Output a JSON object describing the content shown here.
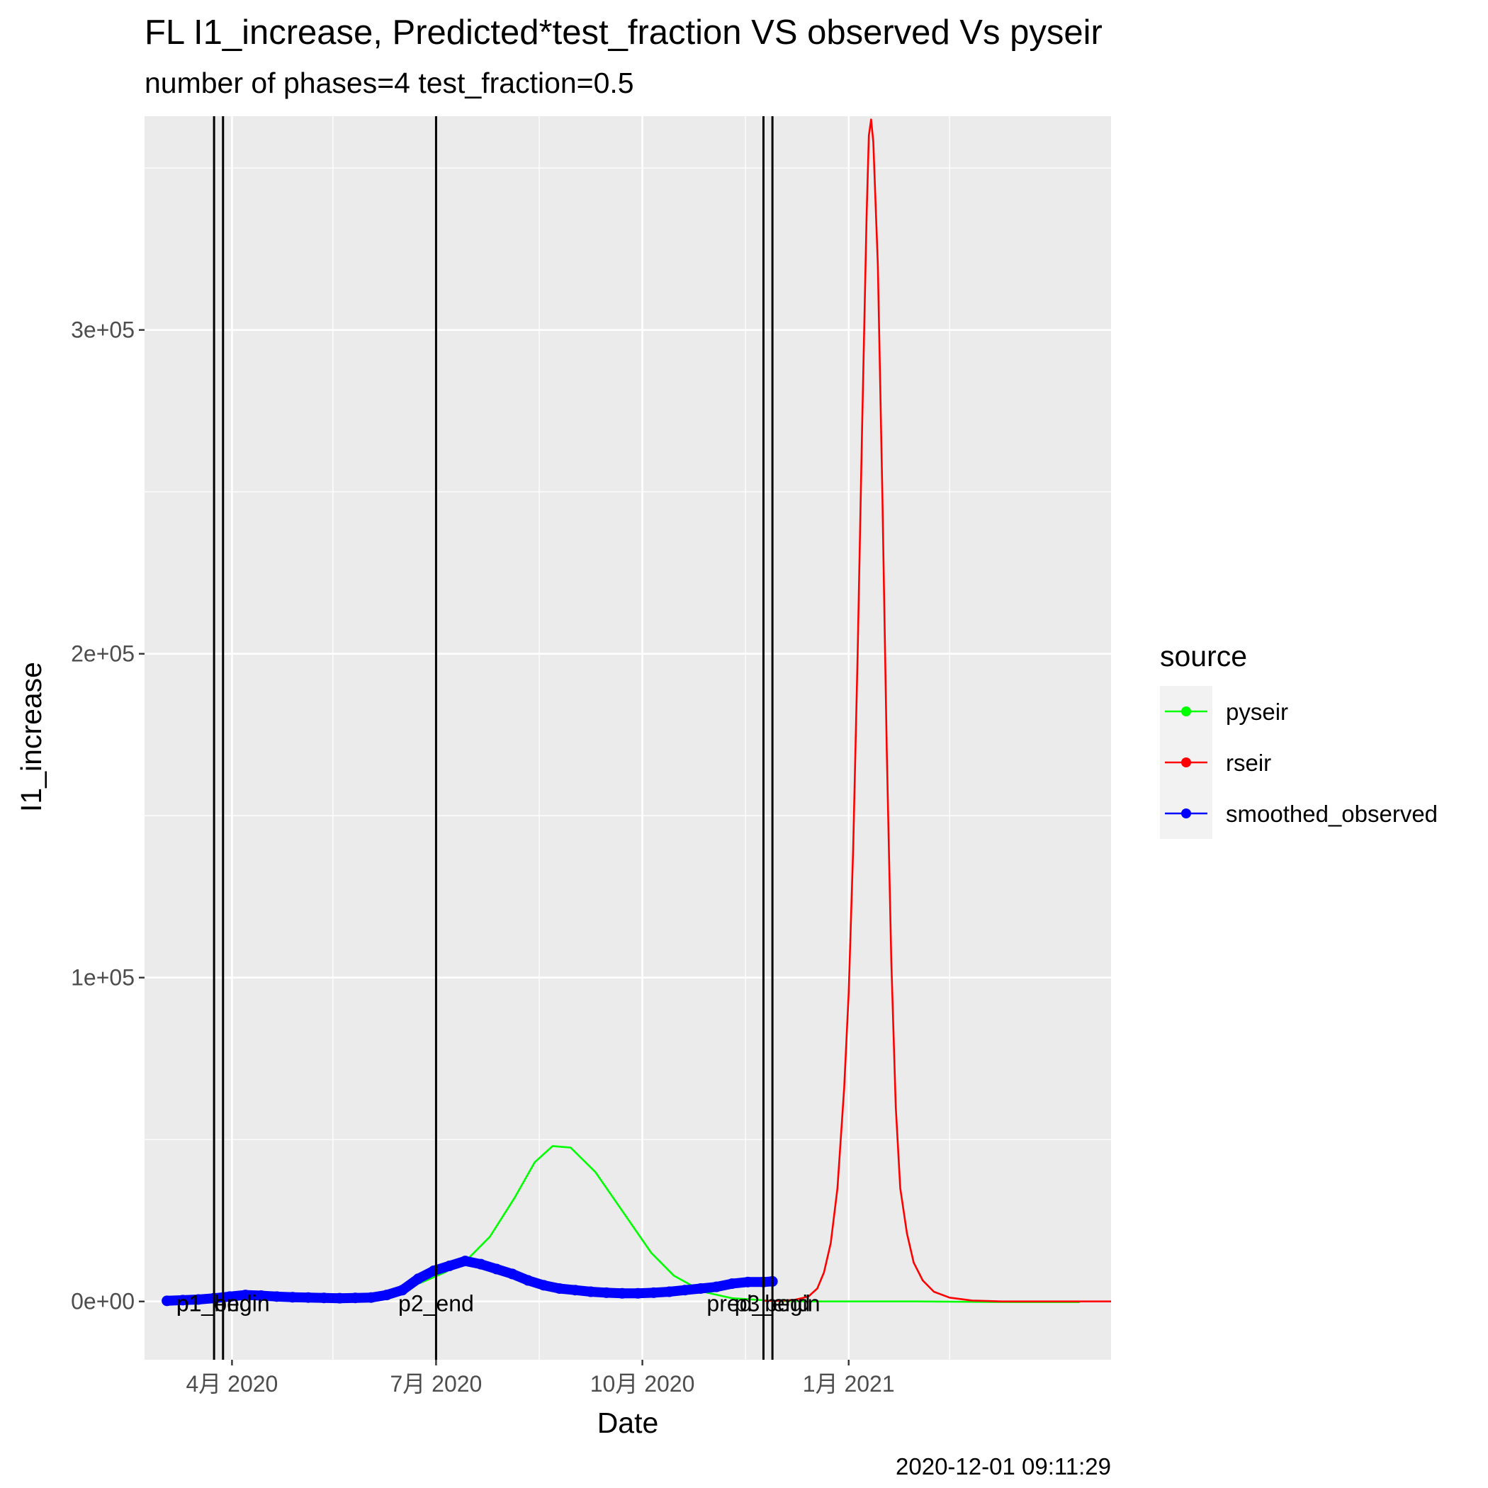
{
  "chart_data": {
    "type": "line",
    "title": "FL I1_increase, Predicted*test_fraction VS observed Vs pyseir",
    "subtitle": "number of phases=4   test_fraction=0.5",
    "xlabel": "Date",
    "ylabel": "I1_increase",
    "caption": "2020-12-01 09:11:29",
    "x_axis": {
      "scale": "date",
      "range": [
        "2020-02-22",
        "2021-04-28"
      ],
      "ticks": [
        {
          "date": "2020-04-01",
          "label": "4月 2020"
        },
        {
          "date": "2020-07-01",
          "label": "7月 2020"
        },
        {
          "date": "2020-10-01",
          "label": "10月 2020"
        },
        {
          "date": "2021-01-01",
          "label": "1月 2021"
        }
      ],
      "minor_ticks": [
        "2020-02-15",
        "2020-05-16",
        "2020-08-16",
        "2020-11-16",
        "2021-02-15"
      ]
    },
    "y_axis": {
      "range": [
        -18000,
        366000
      ],
      "ticks": [
        {
          "value": 0,
          "label": "0e+00"
        },
        {
          "value": 100000,
          "label": "1e+05"
        },
        {
          "value": 200000,
          "label": "2e+05"
        },
        {
          "value": 300000,
          "label": "3e+05"
        }
      ],
      "minor_ticks": [
        50000,
        150000,
        250000,
        350000
      ]
    },
    "grid": true,
    "legend": {
      "title": "source",
      "placement": "right",
      "entries": [
        {
          "name": "pyseir",
          "color": "#00ff00"
        },
        {
          "name": "rseir",
          "color": "#ff0000"
        },
        {
          "name": "smoothed_observed",
          "color": "#0000ff"
        }
      ]
    },
    "vlines": [
      {
        "date": "2020-03-24",
        "label": "p1_end"
      },
      {
        "date": "2020-03-28",
        "label": "p1_begin"
      },
      {
        "date": "2020-07-01",
        "label": "p2_end"
      },
      {
        "date": "2020-11-24",
        "label": "pred_begin"
      },
      {
        "date": "2020-11-28",
        "label": "p3_end"
      }
    ],
    "series": [
      {
        "name": "pyseir",
        "color": "#00ff00",
        "points": [
          [
            "2020-03-03",
            0
          ],
          [
            "2020-03-20",
            800
          ],
          [
            "2020-04-10",
            1500
          ],
          [
            "2020-05-01",
            1200
          ],
          [
            "2020-05-25",
            1000
          ],
          [
            "2020-06-10",
            2000
          ],
          [
            "2020-06-25",
            6000
          ],
          [
            "2020-07-05",
            9000
          ],
          [
            "2020-07-15",
            13000
          ],
          [
            "2020-07-25",
            20000
          ],
          [
            "2020-08-05",
            32000
          ],
          [
            "2020-08-14",
            43000
          ],
          [
            "2020-08-22",
            48000
          ],
          [
            "2020-08-30",
            47500
          ],
          [
            "2020-09-10",
            40000
          ],
          [
            "2020-09-22",
            28000
          ],
          [
            "2020-10-05",
            15000
          ],
          [
            "2020-10-15",
            8000
          ],
          [
            "2020-10-28",
            3000
          ],
          [
            "2020-11-10",
            1000
          ],
          [
            "2020-11-28",
            200
          ],
          [
            "2020-12-15",
            0
          ],
          [
            "2021-01-31",
            0
          ],
          [
            "2021-03-15",
            -200
          ],
          [
            "2021-04-14",
            -200
          ]
        ]
      },
      {
        "name": "rseir",
        "color": "#ff0000",
        "points": [
          [
            "2020-11-24",
            200
          ],
          [
            "2020-12-01",
            200
          ],
          [
            "2020-12-08",
            500
          ],
          [
            "2020-12-14",
            1500
          ],
          [
            "2020-12-18",
            4000
          ],
          [
            "2020-12-21",
            9000
          ],
          [
            "2020-12-24",
            18000
          ],
          [
            "2020-12-27",
            35000
          ],
          [
            "2020-12-30",
            66000
          ],
          [
            "2021-01-01",
            95000
          ],
          [
            "2021-01-03",
            140000
          ],
          [
            "2021-01-05",
            200000
          ],
          [
            "2021-01-07",
            270000
          ],
          [
            "2021-01-09",
            335000
          ],
          [
            "2021-01-10",
            360000
          ],
          [
            "2021-01-11",
            365000
          ],
          [
            "2021-01-12",
            358000
          ],
          [
            "2021-01-14",
            320000
          ],
          [
            "2021-01-16",
            250000
          ],
          [
            "2021-01-18",
            170000
          ],
          [
            "2021-01-20",
            105000
          ],
          [
            "2021-01-22",
            60000
          ],
          [
            "2021-01-24",
            35000
          ],
          [
            "2021-01-27",
            21000
          ],
          [
            "2021-01-30",
            12000
          ],
          [
            "2021-02-03",
            6500
          ],
          [
            "2021-02-08",
            3000
          ],
          [
            "2021-02-15",
            1200
          ],
          [
            "2021-02-25",
            300
          ],
          [
            "2021-03-10",
            0
          ],
          [
            "2021-04-28",
            0
          ]
        ]
      },
      {
        "name": "smoothed_observed",
        "color": "#0000ff",
        "points": [
          [
            "2020-03-03",
            200
          ],
          [
            "2020-03-10",
            400
          ],
          [
            "2020-03-17",
            600
          ],
          [
            "2020-03-24",
            1000
          ],
          [
            "2020-03-31",
            1500
          ],
          [
            "2020-04-07",
            2000
          ],
          [
            "2020-04-14",
            1800
          ],
          [
            "2020-04-21",
            1500
          ],
          [
            "2020-04-28",
            1300
          ],
          [
            "2020-05-05",
            1200
          ],
          [
            "2020-05-12",
            1100
          ],
          [
            "2020-05-19",
            1000
          ],
          [
            "2020-05-26",
            1100
          ],
          [
            "2020-06-02",
            1200
          ],
          [
            "2020-06-09",
            2000
          ],
          [
            "2020-06-16",
            3500
          ],
          [
            "2020-06-23",
            7000
          ],
          [
            "2020-06-30",
            9500
          ],
          [
            "2020-07-07",
            11000
          ],
          [
            "2020-07-14",
            12500
          ],
          [
            "2020-07-21",
            11500
          ],
          [
            "2020-07-28",
            10000
          ],
          [
            "2020-08-04",
            8500
          ],
          [
            "2020-08-11",
            6500
          ],
          [
            "2020-08-18",
            5000
          ],
          [
            "2020-08-25",
            4000
          ],
          [
            "2020-09-01",
            3500
          ],
          [
            "2020-09-08",
            3000
          ],
          [
            "2020-09-15",
            2700
          ],
          [
            "2020-09-22",
            2500
          ],
          [
            "2020-09-29",
            2500
          ],
          [
            "2020-10-06",
            2700
          ],
          [
            "2020-10-13",
            3000
          ],
          [
            "2020-10-20",
            3500
          ],
          [
            "2020-10-27",
            4000
          ],
          [
            "2020-11-03",
            4500
          ],
          [
            "2020-11-10",
            5500
          ],
          [
            "2020-11-17",
            6000
          ],
          [
            "2020-11-24",
            6000
          ],
          [
            "2020-11-28",
            6200
          ]
        ]
      }
    ]
  }
}
